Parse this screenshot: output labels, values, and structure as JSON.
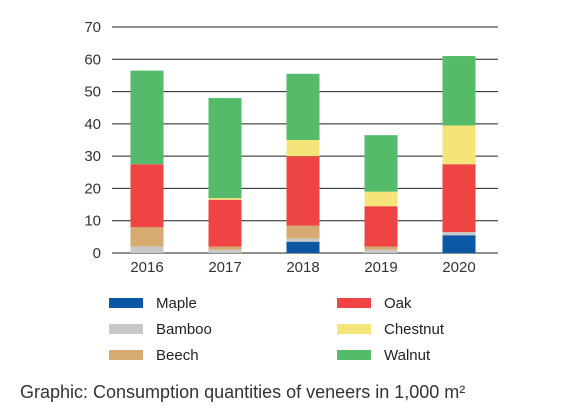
{
  "chart_data": {
    "type": "bar",
    "stacked": true,
    "categories": [
      "2016",
      "2017",
      "2018",
      "2019",
      "2020"
    ],
    "series": [
      {
        "name": "Maple",
        "color": "#0b57a4",
        "values": [
          0,
          0,
          3.5,
          0,
          5.5
        ]
      },
      {
        "name": "Bamboo",
        "color": "#c8c8c8",
        "values": [
          2,
          1,
          1,
          1,
          1
        ]
      },
      {
        "name": "Beech",
        "color": "#d6aa70",
        "values": [
          6,
          1,
          4,
          1,
          0
        ]
      },
      {
        "name": "Oak",
        "color": "#ee4444",
        "values": [
          19.5,
          14.5,
          21.5,
          12.5,
          21
        ]
      },
      {
        "name": "Chestnut",
        "color": "#f5e47a",
        "values": [
          0,
          0.5,
          5,
          4.5,
          12
        ]
      },
      {
        "name": "Walnut",
        "color": "#55bb6a",
        "values": [
          29,
          31,
          20.5,
          17.5,
          21.5
        ]
      }
    ],
    "yticks": [
      0,
      10,
      20,
      30,
      40,
      50,
      60,
      70
    ],
    "ylim": [
      0,
      70
    ],
    "grid": true,
    "legend_position": "bottom",
    "caption": "Graphic: Consumption quantities of veneers in 1,000 m²"
  }
}
